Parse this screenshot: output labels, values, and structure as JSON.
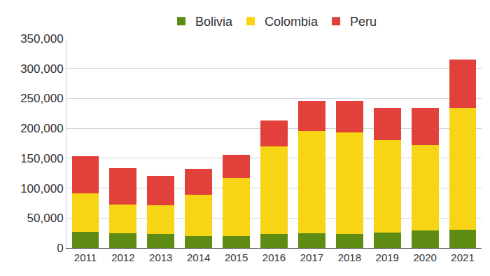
{
  "chart_data": {
    "type": "bar",
    "stacked": true,
    "grid": true,
    "legend": "top",
    "categories": [
      "2011",
      "2012",
      "2013",
      "2014",
      "2015",
      "2016",
      "2017",
      "2018",
      "2019",
      "2020",
      "2021"
    ],
    "series": [
      {
        "name": "Bolivia",
        "color": "#5e8c12",
        "values": [
          27000,
          25000,
          23000,
          20000,
          20000,
          23000,
          24500,
          23000,
          25500,
          29000,
          30000
        ]
      },
      {
        "name": "Colombia",
        "color": "#f7d414",
        "values": [
          64000,
          47000,
          48000,
          69000,
          97000,
          147000,
          171000,
          170000,
          154500,
          143000,
          204000
        ]
      },
      {
        "name": "Peru",
        "color": "#e2403a",
        "values": [
          62000,
          61000,
          49000,
          43000,
          39000,
          43000,
          50000,
          53000,
          54000,
          62000,
          81000
        ]
      }
    ],
    "ylim": [
      0,
      350000
    ],
    "yticks": [
      0,
      {
        "value": 50000,
        "label": "50,000"
      },
      {
        "value": 100000,
        "label": "100,000"
      },
      {
        "value": 150000,
        "label": "150,000"
      },
      {
        "value": 200000,
        "label": "200,000"
      },
      {
        "value": 250000,
        "label": "250,000"
      },
      {
        "value": 300000,
        "label": "300,000"
      },
      {
        "value": 350000,
        "label": "350,000"
      }
    ]
  }
}
